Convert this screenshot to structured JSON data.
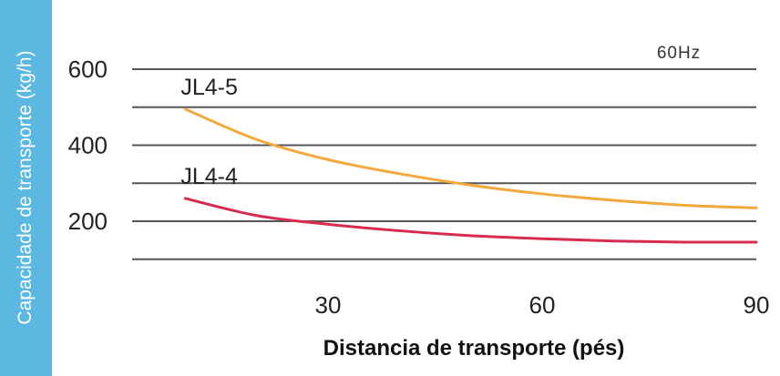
{
  "chart_data": {
    "type": "line",
    "title": "",
    "xlabel": "Distancia de transporte (pés)",
    "ylabel": "Capacidade de transporte (kg/h)",
    "annotation": "60Hz",
    "xlim": [
      5,
      90
    ],
    "ylim": [
      0,
      680
    ],
    "x_ticks": [
      30,
      60,
      90
    ],
    "y_ticks": [
      200,
      400,
      600
    ],
    "gridlines_y": [
      100,
      200,
      300,
      400,
      500,
      600
    ],
    "grid": true,
    "series": [
      {
        "name": "JL4-5",
        "color": "#f2a93b",
        "x": [
          10,
          20,
          30,
          40,
          50,
          60,
          70,
          80,
          90
        ],
        "y": [
          495,
          415,
          362,
          325,
          295,
          272,
          255,
          242,
          235
        ]
      },
      {
        "name": "JL4-4",
        "color": "#d62b4e",
        "x": [
          10,
          20,
          30,
          40,
          50,
          60,
          70,
          80,
          90
        ],
        "y": [
          260,
          215,
          192,
          175,
          162,
          154,
          148,
          145,
          145
        ]
      }
    ]
  }
}
